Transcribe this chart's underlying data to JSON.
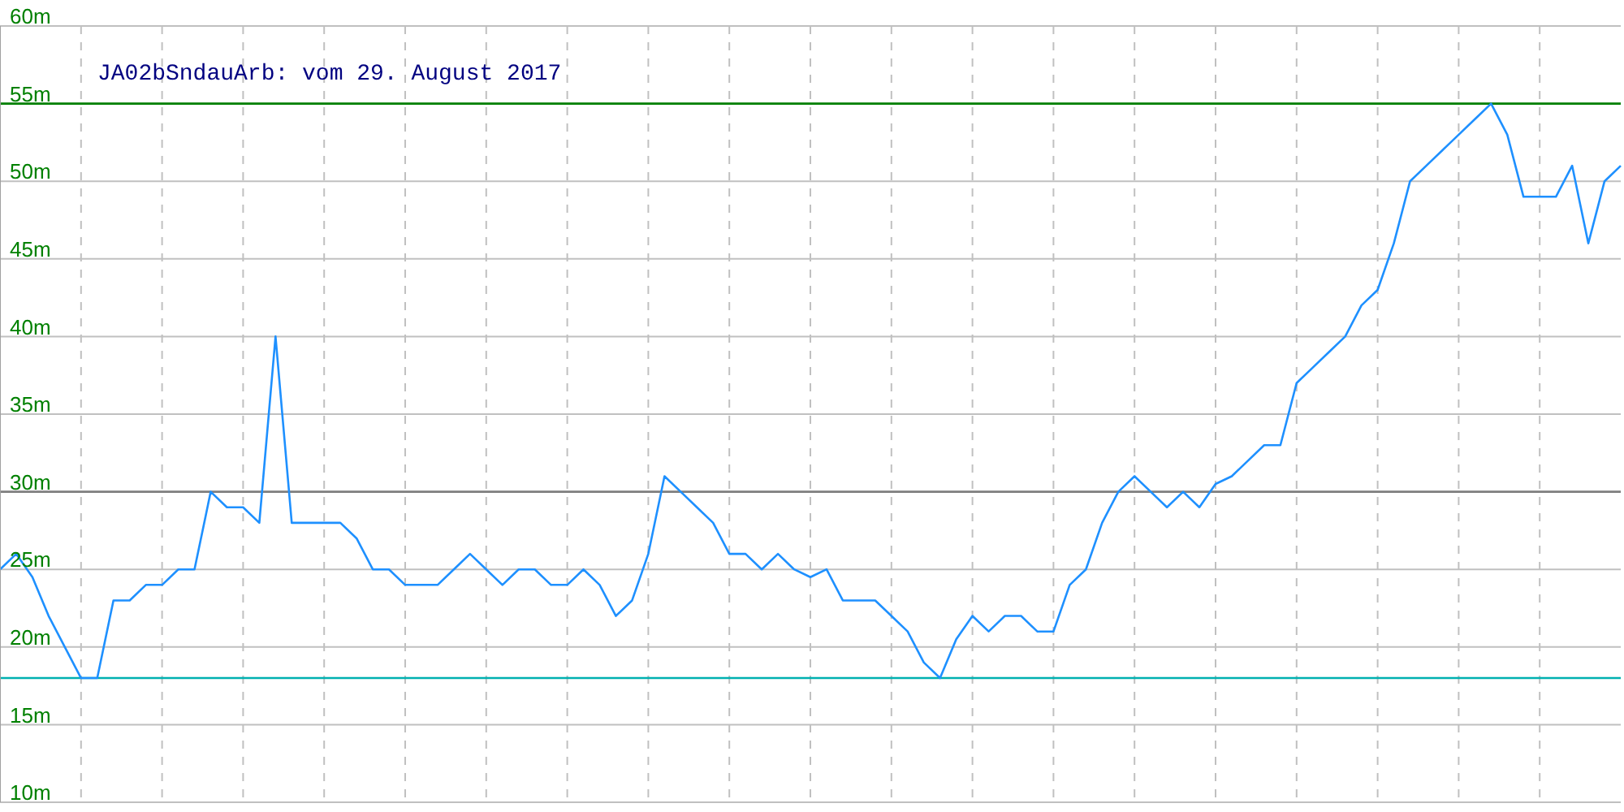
{
  "chart_data": {
    "type": "line",
    "title": "JA02bSndauArb: vom 29. August 2017",
    "categories": [
      null,
      null,
      null,
      null,
      null,
      null,
      null,
      null,
      null,
      null,
      null,
      null,
      null,
      null,
      null,
      null,
      null,
      null,
      null,
      null,
      null,
      null,
      null,
      null,
      null,
      null,
      null,
      null,
      null,
      null,
      null,
      null,
      null,
      null,
      null,
      null,
      null,
      null,
      null,
      null,
      null,
      null,
      null,
      null,
      null,
      null,
      null,
      null,
      null,
      null,
      null,
      null,
      null,
      null,
      null,
      null,
      null,
      null,
      null,
      null,
      null,
      null,
      null,
      null,
      null,
      null,
      null,
      null,
      null,
      null,
      null,
      null,
      null,
      null,
      null,
      null,
      null,
      null,
      null,
      null,
      null,
      null,
      null,
      null,
      null,
      null,
      null,
      null,
      null,
      null,
      null,
      null,
      null,
      null,
      null,
      null,
      null,
      null,
      null,
      null,
      null
    ],
    "series": [
      {
        "color": "#1e90ff",
        "values": [
          25,
          26,
          24.5,
          22,
          20,
          18,
          18,
          23,
          23,
          24,
          24,
          25,
          25,
          30,
          29,
          29,
          28,
          40,
          28,
          28,
          28,
          28,
          27,
          25,
          25,
          24,
          24,
          24,
          25,
          26,
          25,
          24,
          25,
          25,
          24,
          24,
          25,
          24,
          22,
          23,
          26,
          31,
          30,
          29,
          28,
          26,
          26,
          25,
          26,
          25,
          24.5,
          25,
          23,
          23,
          23,
          22,
          21,
          19,
          18,
          20.5,
          22,
          21,
          22,
          22,
          21,
          21,
          24,
          25,
          28,
          30,
          31,
          30,
          29,
          30,
          29,
          30.5,
          31,
          32,
          33,
          33,
          37,
          38,
          39,
          40,
          42,
          43,
          46,
          50,
          51,
          52,
          53,
          54,
          55,
          53,
          49,
          49,
          49,
          51,
          46,
          50,
          51
        ]
      }
    ],
    "ylim": [
      10,
      60
    ],
    "yticks": [
      {
        "value": 10,
        "label": "10m"
      },
      {
        "value": 15,
        "label": "15m"
      },
      {
        "value": 20,
        "label": "20m"
      },
      {
        "value": 25,
        "label": "25m"
      },
      {
        "value": 30,
        "label": "30m"
      },
      {
        "value": 35,
        "label": "35m"
      },
      {
        "value": 40,
        "label": "40m"
      },
      {
        "value": 45,
        "label": "45m"
      },
      {
        "value": 50,
        "label": "50m"
      },
      {
        "value": 55,
        "label": "55m"
      },
      {
        "value": 60,
        "label": "60m"
      }
    ],
    "grid": true,
    "tick_labels": "y",
    "marker": "none",
    "line_style": "solid",
    "ref_lines": [
      {
        "axis": "y",
        "value": 55,
        "color": "#008000"
      },
      {
        "axis": "y",
        "value": 30,
        "color": "#808080"
      },
      {
        "axis": "y",
        "value": 18,
        "color": "#00b0b0"
      }
    ]
  }
}
